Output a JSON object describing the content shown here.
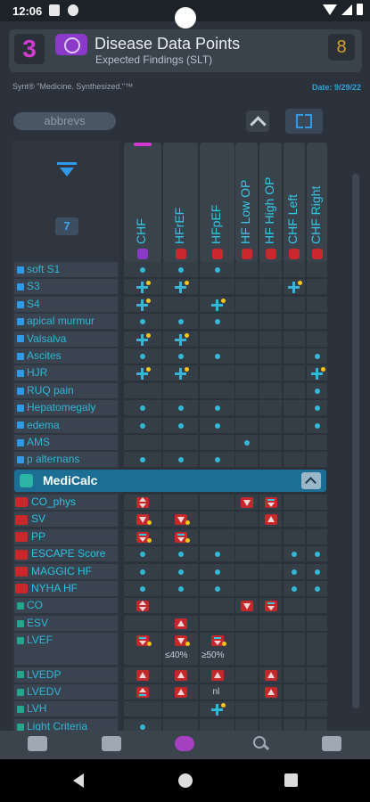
{
  "status": {
    "time": "12:06"
  },
  "header": {
    "badge_left": "3",
    "title": "Disease Data Points",
    "subtitle": "Expected Findings (SLT)",
    "badge_right": "8",
    "tagline": "Synt® \"Medicine. Synthesized.\"™",
    "date": "Date: 9/29/22"
  },
  "controls": {
    "abbrevs": "abbrevs",
    "count": "7"
  },
  "columns": [
    "CHF",
    "HFrEF",
    "HFpEF",
    "HF Low OP",
    "HF High OP",
    "CHF Left",
    "CHF Right"
  ],
  "section": {
    "title": "MediCalc"
  },
  "rows_findings": [
    {
      "label": "soft S1",
      "cells": [
        "dot",
        "dot",
        "dot",
        "",
        "",
        "",
        ""
      ]
    },
    {
      "label": "S3",
      "cells": [
        "plus",
        "plus",
        "",
        "",
        "",
        "plus",
        ""
      ]
    },
    {
      "label": "S4",
      "cells": [
        "plus",
        "",
        "plus",
        "",
        "",
        "",
        ""
      ]
    },
    {
      "label": "apical murmur",
      "cells": [
        "dot",
        "dot",
        "dot",
        "",
        "",
        "",
        ""
      ]
    },
    {
      "label": "Valsalva",
      "cells": [
        "plus",
        "plus",
        "",
        "",
        "",
        "",
        ""
      ]
    },
    {
      "label": "Ascites",
      "cells": [
        "dot",
        "dot",
        "dot",
        "",
        "",
        "",
        "dot"
      ]
    },
    {
      "label": "HJR",
      "cells": [
        "plus",
        "plus",
        "",
        "",
        "",
        "",
        "plus"
      ]
    },
    {
      "label": "RUQ pain",
      "cells": [
        "",
        "",
        "",
        "",
        "",
        "",
        "dot"
      ]
    },
    {
      "label": "Hepatomegaly",
      "cells": [
        "dot",
        "dot",
        "dot",
        "",
        "",
        "",
        "dot"
      ]
    },
    {
      "label": "edema",
      "cells": [
        "dot",
        "dot",
        "dot",
        "",
        "",
        "",
        "dot"
      ]
    },
    {
      "label": "AMS",
      "cells": [
        "",
        "",
        "",
        "dot",
        "",
        "",
        ""
      ]
    },
    {
      "label": "p alternans",
      "cells": [
        "dot",
        "dot",
        "dot",
        "",
        "",
        "",
        ""
      ]
    }
  ],
  "rows_medicalc": [
    {
      "label": "CO_phys",
      "type": "mc",
      "cells": [
        "ud",
        "",
        "",
        "dn",
        "eq",
        "",
        ""
      ]
    },
    {
      "label": "SV",
      "type": "mc",
      "cells": [
        "dny",
        "dny",
        "",
        "",
        "up",
        "",
        ""
      ]
    },
    {
      "label": "PP",
      "type": "mc",
      "cells": [
        "eqy",
        "eqy",
        "",
        "",
        "",
        "",
        ""
      ]
    },
    {
      "label": "ESCAPE Score",
      "type": "mc",
      "cells": [
        "dot",
        "dot",
        "dot",
        "",
        "",
        "dot",
        "dot"
      ]
    },
    {
      "label": "MAGGIC HF",
      "type": "mc",
      "cells": [
        "dot",
        "dot",
        "dot",
        "",
        "",
        "dot",
        "dot"
      ]
    },
    {
      "label": "NYHA HF",
      "type": "mc",
      "cells": [
        "dot",
        "dot",
        "dot",
        "",
        "",
        "dot",
        "dot"
      ]
    },
    {
      "label": "CO",
      "type": "mg",
      "cells": [
        "ud",
        "",
        "",
        "dn",
        "eq",
        "",
        ""
      ]
    },
    {
      "label": "ESV",
      "type": "mg",
      "cells": [
        "",
        "up",
        "",
        "",
        "",
        "",
        ""
      ]
    },
    {
      "label": "LVEF",
      "type": "mg",
      "tall": true,
      "cells": [
        "eqy",
        "dny",
        "eqy",
        "",
        "",
        "",
        ""
      ],
      "notes": [
        "",
        "≤40%",
        "≥50%",
        "",
        "",
        "",
        ""
      ]
    },
    {
      "label": "LVEDP",
      "type": "mg",
      "cells": [
        "up",
        "up",
        "up",
        "",
        "up",
        "",
        ""
      ]
    },
    {
      "label": "LVEDV",
      "type": "mg",
      "cells": [
        "equp",
        "up",
        "nl",
        "",
        "up",
        "",
        ""
      ]
    },
    {
      "label": "LVH",
      "type": "mg",
      "cells": [
        "",
        "",
        "plus",
        "",
        "",
        "",
        ""
      ]
    },
    {
      "label": "Light Criteria",
      "type": "mg",
      "cells": [
        "dot",
        "",
        "",
        "",
        "",
        "",
        ""
      ]
    }
  ],
  "nl_text": "nl",
  "colors": {
    "accent": "#2f9be8",
    "teal": "#35b7d4",
    "red": "#c4282b",
    "purple": "#a541c0"
  }
}
